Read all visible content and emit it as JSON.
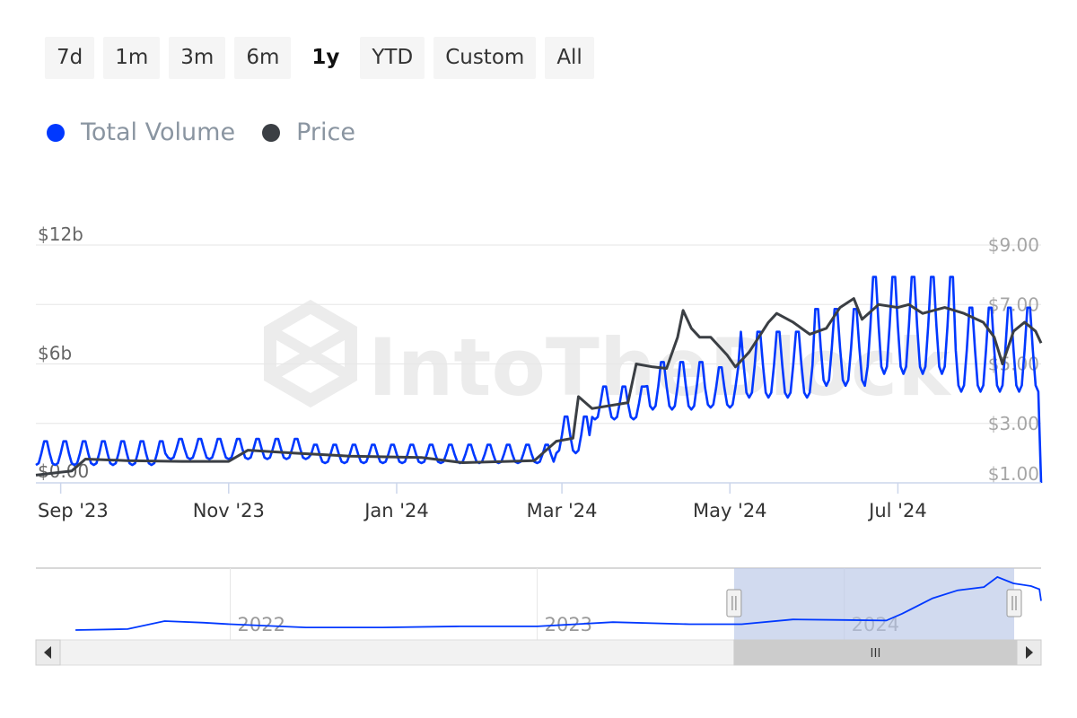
{
  "range_selector": {
    "buttons": [
      "7d",
      "1m",
      "3m",
      "6m",
      "1y",
      "YTD",
      "Custom",
      "All"
    ],
    "active": "1y"
  },
  "legend": {
    "items": [
      {
        "label": "Total Volume",
        "color": "#0038ff"
      },
      {
        "label": "Price",
        "color": "#3b3f44"
      }
    ]
  },
  "watermark": "IntoTheBlock",
  "chart_data": {
    "type": "line",
    "x_axis_labels": [
      "Sep '23",
      "Nov '23",
      "Jan '24",
      "Mar '24",
      "May '24",
      "Jul '24"
    ],
    "y_left": {
      "ticks": [
        "$12b",
        "$6b",
        "$0.00"
      ],
      "range": [
        0,
        12
      ]
    },
    "y_right": {
      "ticks": [
        "$9.00",
        "$7.00",
        "$5.00",
        "$3.00",
        "$1.00"
      ],
      "range": [
        1,
        9
      ]
    },
    "series": [
      {
        "name": "Total Volume",
        "color": "#0038ff",
        "axis": "left",
        "unit": "b",
        "segments": [
          {
            "start": "2023-08-23",
            "end": "2023-10-10",
            "trough": 0.9,
            "peak": 2.2
          },
          {
            "start": "2023-10-10",
            "end": "2023-12-01",
            "trough": 1.2,
            "peak": 2.3
          },
          {
            "start": "2023-12-01",
            "end": "2024-02-01",
            "trough": 1.0,
            "peak": 2.0
          },
          {
            "start": "2024-02-01",
            "end": "2024-02-28",
            "trough": 1.0,
            "peak": 2.0
          },
          {
            "start": "2024-02-28",
            "end": "2024-03-12",
            "trough": 1.5,
            "peak": 3.5
          },
          {
            "start": "2024-03-12",
            "end": "2024-04-01",
            "trough": 3.2,
            "peak": 5.0
          },
          {
            "start": "2024-04-01",
            "end": "2024-04-22",
            "trough": 3.7,
            "peak": 6.3
          },
          {
            "start": "2024-04-22",
            "end": "2024-05-05",
            "trough": 3.8,
            "peak": 6.0
          },
          {
            "start": "2024-05-05",
            "end": "2024-06-01",
            "trough": 4.3,
            "peak": 7.9
          },
          {
            "start": "2024-06-01",
            "end": "2024-06-20",
            "trough": 4.9,
            "peak": 9.1
          },
          {
            "start": "2024-06-20",
            "end": "2024-07-22",
            "trough": 5.5,
            "peak": 10.8
          },
          {
            "start": "2024-07-22",
            "end": "2024-08-22",
            "trough": 4.6,
            "peak": 9.2
          }
        ]
      },
      {
        "name": "Price",
        "color": "#3b3f44",
        "axis": "right",
        "points": [
          [
            "2023-08-23",
            1.26
          ],
          [
            "2023-09-05",
            1.4
          ],
          [
            "2023-09-10",
            1.8
          ],
          [
            "2023-09-25",
            1.75
          ],
          [
            "2023-10-15",
            1.72
          ],
          [
            "2023-11-01",
            1.72
          ],
          [
            "2023-11-08",
            2.1
          ],
          [
            "2023-11-25",
            2.0
          ],
          [
            "2023-12-15",
            1.9
          ],
          [
            "2024-01-10",
            1.85
          ],
          [
            "2024-01-25",
            1.68
          ],
          [
            "2024-02-20",
            1.75
          ],
          [
            "2024-02-28",
            2.4
          ],
          [
            "2024-03-05",
            2.5
          ],
          [
            "2024-03-07",
            3.9
          ],
          [
            "2024-03-12",
            3.5
          ],
          [
            "2024-03-25",
            3.7
          ],
          [
            "2024-03-28",
            5.0
          ],
          [
            "2024-04-03",
            4.9
          ],
          [
            "2024-04-08",
            4.85
          ],
          [
            "2024-04-12",
            5.9
          ],
          [
            "2024-04-14",
            6.8
          ],
          [
            "2024-04-17",
            6.2
          ],
          [
            "2024-04-20",
            5.9
          ],
          [
            "2024-04-24",
            5.9
          ],
          [
            "2024-04-30",
            5.3
          ],
          [
            "2024-05-03",
            4.9
          ],
          [
            "2024-05-08",
            5.4
          ],
          [
            "2024-05-15",
            6.4
          ],
          [
            "2024-05-18",
            6.7
          ],
          [
            "2024-05-24",
            6.4
          ],
          [
            "2024-05-30",
            6.0
          ],
          [
            "2024-06-05",
            6.2
          ],
          [
            "2024-06-10",
            6.9
          ],
          [
            "2024-06-15",
            7.2
          ],
          [
            "2024-06-18",
            6.5
          ],
          [
            "2024-06-24",
            7.0
          ],
          [
            "2024-07-01",
            6.9
          ],
          [
            "2024-07-05",
            7.0
          ],
          [
            "2024-07-10",
            6.7
          ],
          [
            "2024-07-18",
            6.9
          ],
          [
            "2024-07-25",
            6.7
          ],
          [
            "2024-08-01",
            6.4
          ],
          [
            "2024-08-05",
            5.9
          ],
          [
            "2024-08-08",
            5.0
          ],
          [
            "2024-08-12",
            6.1
          ],
          [
            "2024-08-16",
            6.4
          ],
          [
            "2024-08-20",
            6.1
          ],
          [
            "2024-08-22",
            5.7
          ]
        ]
      }
    ],
    "grid": true,
    "legend_position": "top-left"
  },
  "navigator": {
    "year_labels": [
      "2022",
      "2023",
      "2024"
    ],
    "series_points": [
      [
        "2021-07-01",
        0.5
      ],
      [
        "2021-09-01",
        0.7
      ],
      [
        "2021-10-15",
        2.2
      ],
      [
        "2021-12-01",
        1.9
      ],
      [
        "2022-01-01",
        1.6
      ],
      [
        "2022-04-01",
        1.0
      ],
      [
        "2022-07-01",
        1.0
      ],
      [
        "2022-10-01",
        1.2
      ],
      [
        "2023-01-01",
        1.2
      ],
      [
        "2023-04-01",
        2.0
      ],
      [
        "2023-07-01",
        1.6
      ],
      [
        "2023-09-01",
        1.6
      ],
      [
        "2023-11-01",
        2.5
      ],
      [
        "2024-01-01",
        2.4
      ],
      [
        "2024-02-20",
        2.3
      ],
      [
        "2024-03-10",
        3.6
      ],
      [
        "2024-04-15",
        6.5
      ],
      [
        "2024-05-15",
        8.0
      ],
      [
        "2024-06-15",
        8.6
      ],
      [
        "2024-07-01",
        10.5
      ],
      [
        "2024-07-20",
        9.3
      ],
      [
        "2024-08-10",
        8.8
      ],
      [
        "2024-08-20",
        8.2
      ],
      [
        "2024-08-22",
        6.0
      ]
    ],
    "selected_start": "2023-08-23",
    "selected_end": "2024-08-22"
  }
}
